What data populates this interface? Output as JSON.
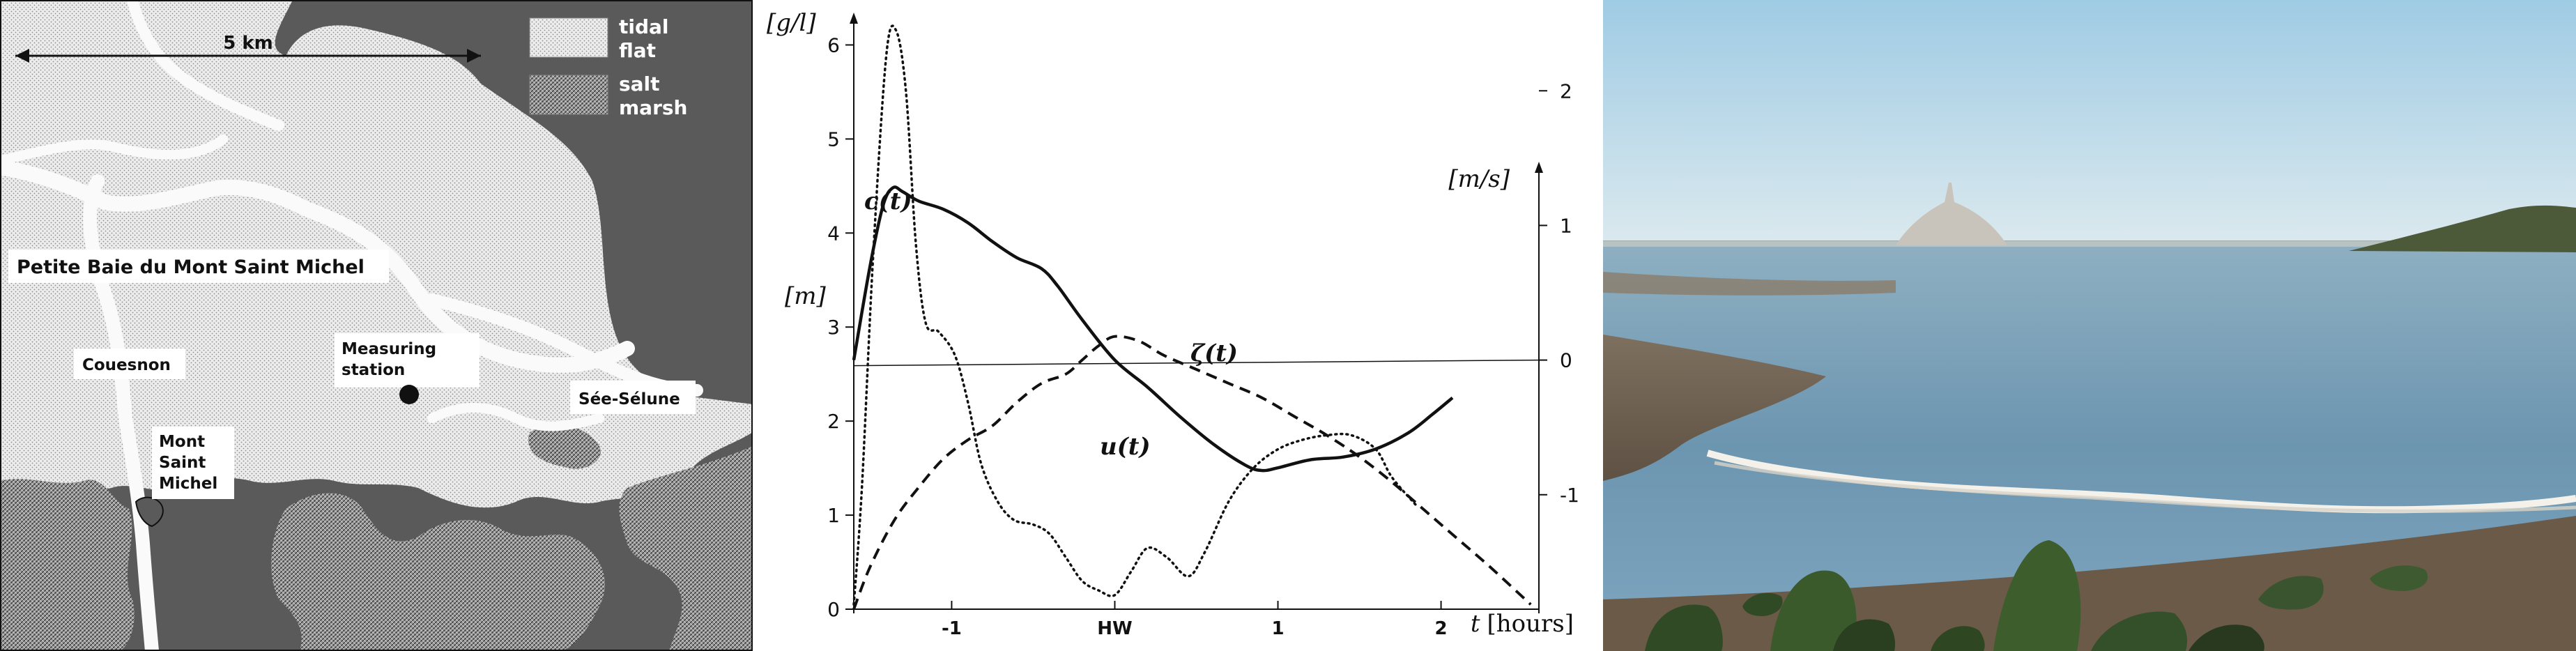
{
  "map": {
    "scale_label": "5 km",
    "legend": {
      "tidal_flat": "tidal flat",
      "tidal_flat_lines": [
        "tidal",
        "flat"
      ],
      "salt_marsh": "salt marsh",
      "salt_marsh_lines": [
        "salt",
        "marsh"
      ]
    },
    "labels": {
      "bay": "Petite Baie du Mont Saint Michel",
      "couesnon": "Couesnon",
      "measuring_station": "Measuring station",
      "measuring_station_lines": [
        "Measuring",
        "station"
      ],
      "see_selune": "Sée-Sélune",
      "mont_saint_michel": "Mont Saint Michel",
      "mont_saint_michel_lines": [
        "Mont",
        "Saint",
        "Michel"
      ]
    },
    "colors": {
      "land": "#5a5a5a",
      "tidal_flat": "#e4e4e4",
      "salt_marsh": "#a8a8a8",
      "channel": "#fafafa"
    }
  },
  "chart_data": {
    "type": "line",
    "xlabel": "t [hours]",
    "xlabel_parts": {
      "var": "t",
      "unit": "[hours]"
    },
    "x_ticks": [
      {
        "value": -1,
        "label": "-1"
      },
      {
        "value": 0,
        "label": "HW"
      },
      {
        "value": 1,
        "label": "1"
      },
      {
        "value": 2,
        "label": "2"
      }
    ],
    "xlim": [
      -1.6,
      2.6
    ],
    "left_axis": {
      "labels": [
        "[g/l]",
        "[m]"
      ],
      "ticks": [
        "0",
        "1",
        "2",
        "3",
        "4",
        "5",
        "6"
      ],
      "ylim": [
        0,
        6.3
      ]
    },
    "right_axis": {
      "label": "[m/s]",
      "ticks": [
        "-1",
        "0",
        "1",
        "2"
      ],
      "ylim": [
        -1.85,
        2.55
      ]
    },
    "series": [
      {
        "name": "c(t)",
        "style": "dotted",
        "axis": "left",
        "x": [
          -1.6,
          -1.55,
          -1.48,
          -1.4,
          -1.34,
          -1.28,
          -1.22,
          -1.16,
          -1.08,
          -0.98,
          -0.9,
          -0.82,
          -0.72,
          -0.62,
          -0.5,
          -0.4,
          -0.3,
          -0.2,
          -0.1,
          0.0,
          0.1,
          0.2,
          0.32,
          0.45,
          0.55,
          0.7,
          0.85,
          1.0,
          1.15,
          1.3,
          1.45,
          1.6,
          1.7,
          1.85
        ],
        "y": [
          0.05,
          1.3,
          3.8,
          5.9,
          6.15,
          5.5,
          3.9,
          3.05,
          2.95,
          2.7,
          2.2,
          1.55,
          1.15,
          0.95,
          0.9,
          0.8,
          0.55,
          0.3,
          0.2,
          0.15,
          0.4,
          0.65,
          0.55,
          0.35,
          0.6,
          1.15,
          1.5,
          1.7,
          1.8,
          1.85,
          1.85,
          1.7,
          1.4,
          1.1
        ]
      },
      {
        "name": "u(t)",
        "style": "solid",
        "axis": "right",
        "x": [
          -1.6,
          -1.5,
          -1.42,
          -1.36,
          -1.3,
          -1.2,
          -1.05,
          -0.9,
          -0.75,
          -0.6,
          -0.45,
          -0.35,
          -0.2,
          0.0,
          0.2,
          0.4,
          0.6,
          0.8,
          0.9,
          1.0,
          1.2,
          1.4,
          1.6,
          1.8,
          1.95,
          2.07
        ],
        "y": [
          0.0,
          0.7,
          1.15,
          1.28,
          1.25,
          1.18,
          1.12,
          1.02,
          0.88,
          0.76,
          0.68,
          0.55,
          0.3,
          0.0,
          -0.2,
          -0.42,
          -0.62,
          -0.78,
          -0.82,
          -0.8,
          -0.74,
          -0.72,
          -0.66,
          -0.54,
          -0.4,
          -0.28
        ]
      },
      {
        "name": "ζ(t)",
        "style": "dashed",
        "axis": "left",
        "x": [
          -1.6,
          -1.5,
          -1.35,
          -1.2,
          -1.05,
          -0.9,
          -0.75,
          -0.6,
          -0.45,
          -0.3,
          -0.2,
          -0.1,
          0.0,
          0.15,
          0.3,
          0.5,
          0.7,
          0.9,
          1.1,
          1.3,
          1.5,
          1.7,
          1.9,
          2.1,
          2.3,
          2.55
        ],
        "y": [
          0.0,
          0.45,
          0.95,
          1.3,
          1.6,
          1.8,
          1.95,
          2.2,
          2.4,
          2.5,
          2.65,
          2.8,
          2.9,
          2.85,
          2.7,
          2.55,
          2.4,
          2.25,
          2.05,
          1.85,
          1.62,
          1.35,
          1.05,
          0.75,
          0.45,
          0.05
        ]
      }
    ],
    "series_labels": {
      "c": "c(t)",
      "u": "u(t)",
      "zeta": "ζ(t)"
    },
    "zero_line_axis": "right"
  },
  "photo": {
    "colors": {
      "sky_top": "#a9d2e8",
      "sky_bottom": "#d9e8ee",
      "sea": "#6e96b0",
      "sand": "#7c6a58",
      "rocks": "#3a5a2c"
    }
  }
}
